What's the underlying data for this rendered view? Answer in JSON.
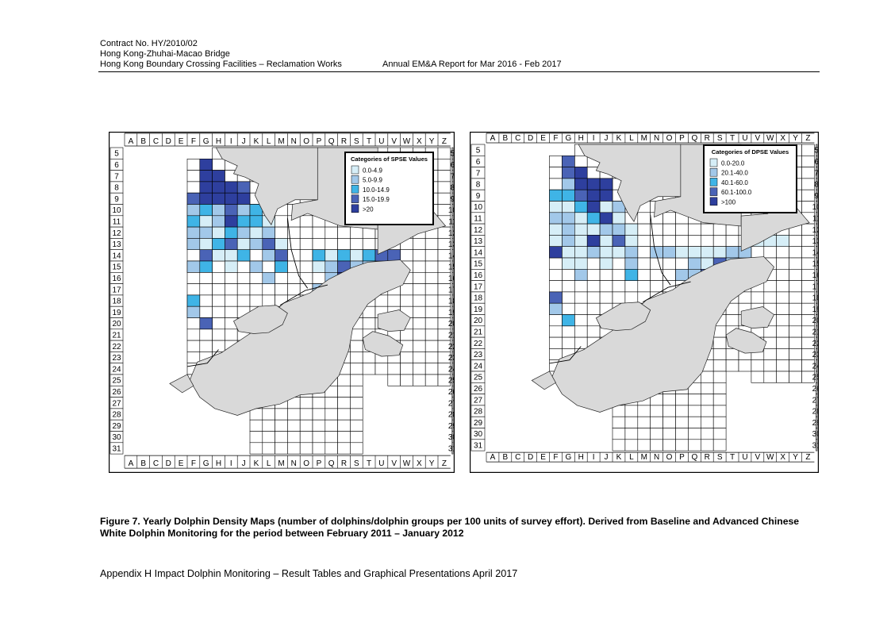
{
  "header": {
    "contract": "Contract No. HY/2010/02",
    "project": "Hong Kong-Zhuhai-Macao Bridge",
    "works": "Hong Kong Boundary Crossing Facilities – Reclamation Works",
    "report": "Annual EM&A Report for Mar 2016 - Feb 2017"
  },
  "grid": {
    "columns": [
      "A",
      "B",
      "C",
      "D",
      "E",
      "F",
      "G",
      "H",
      "I",
      "J",
      "K",
      "L",
      "M",
      "N",
      "O",
      "P",
      "Q",
      "R",
      "S",
      "T",
      "U",
      "V",
      "W",
      "X",
      "Y",
      "Z"
    ],
    "rows": [
      "5",
      "6",
      "7",
      "8",
      "9",
      "10",
      "11",
      "12",
      "13",
      "14",
      "15",
      "16",
      "17",
      "18",
      "19",
      "20",
      "21",
      "22",
      "23",
      "24",
      "25",
      "26",
      "27",
      "28",
      "29",
      "30",
      "31"
    ]
  },
  "maps": [
    {
      "legend_title": "Categories of SPSE Values",
      "categories": [
        {
          "label": "0.0-4.9",
          "color": "#d6eef7"
        },
        {
          "label": "5.0-9.9",
          "color": "#a2c8e9"
        },
        {
          "label": "10.0-14.9",
          "color": "#3fb4e6"
        },
        {
          "label": "15.0-19.9",
          "color": "#4a63b6"
        },
        {
          "label": ">20",
          "color": "#2e3f9e"
        }
      ],
      "cells": [
        [
          "G",
          6,
          4
        ],
        [
          "G",
          7,
          4
        ],
        [
          "H",
          7,
          4
        ],
        [
          "G",
          8,
          4
        ],
        [
          "H",
          8,
          4
        ],
        [
          "I",
          8,
          4
        ],
        [
          "J",
          8,
          3
        ],
        [
          "F",
          9,
          3
        ],
        [
          "G",
          9,
          4
        ],
        [
          "H",
          9,
          4
        ],
        [
          "I",
          9,
          4
        ],
        [
          "J",
          9,
          4
        ],
        [
          "F",
          10,
          1
        ],
        [
          "G",
          10,
          2
        ],
        [
          "H",
          10,
          1
        ],
        [
          "I",
          10,
          3
        ],
        [
          "J",
          10,
          1
        ],
        [
          "K",
          10,
          2
        ],
        [
          "F",
          11,
          2
        ],
        [
          "G",
          11,
          0
        ],
        [
          "H",
          11,
          1
        ],
        [
          "I",
          11,
          4
        ],
        [
          "J",
          11,
          2
        ],
        [
          "K",
          11,
          2
        ],
        [
          "L",
          11,
          0
        ],
        [
          "F",
          12,
          1
        ],
        [
          "G",
          12,
          1
        ],
        [
          "H",
          12,
          0
        ],
        [
          "I",
          12,
          2
        ],
        [
          "J",
          12,
          1
        ],
        [
          "K",
          12,
          0
        ],
        [
          "L",
          12,
          1
        ],
        [
          "F",
          13,
          1
        ],
        [
          "G",
          13,
          0
        ],
        [
          "H",
          13,
          2
        ],
        [
          "I",
          13,
          3
        ],
        [
          "J",
          13,
          0
        ],
        [
          "K",
          13,
          1
        ],
        [
          "L",
          13,
          3
        ],
        [
          "M",
          13,
          0
        ],
        [
          "G",
          14,
          3
        ],
        [
          "H",
          14,
          0
        ],
        [
          "I",
          14,
          0
        ],
        [
          "J",
          14,
          2
        ],
        [
          "L",
          14,
          1
        ],
        [
          "M",
          14,
          3
        ],
        [
          "P",
          14,
          2
        ],
        [
          "Q",
          14,
          0
        ],
        [
          "R",
          14,
          2
        ],
        [
          "S",
          14,
          0
        ],
        [
          "T",
          14,
          2
        ],
        [
          "U",
          14,
          3
        ],
        [
          "V",
          14,
          3
        ],
        [
          "F",
          15,
          1
        ],
        [
          "G",
          15,
          2
        ],
        [
          "I",
          15,
          0
        ],
        [
          "K",
          15,
          1
        ],
        [
          "M",
          15,
          2
        ],
        [
          "P",
          15,
          0
        ],
        [
          "Q",
          15,
          1
        ],
        [
          "R",
          15,
          3
        ],
        [
          "S",
          15,
          1
        ],
        [
          "T",
          15,
          1
        ],
        [
          "L",
          16,
          1
        ],
        [
          "Q",
          16,
          1
        ],
        [
          "R",
          16,
          4
        ],
        [
          "S",
          16,
          3
        ],
        [
          "P",
          17,
          1
        ],
        [
          "Q",
          17,
          1
        ],
        [
          "R",
          17,
          1
        ],
        [
          "F",
          18,
          2
        ],
        [
          "F",
          19,
          1
        ],
        [
          "G",
          20,
          3
        ]
      ]
    },
    {
      "legend_title": "Categories of DPSE Values",
      "categories": [
        {
          "label": "0.0-20.0",
          "color": "#d6eef7"
        },
        {
          "label": "20.1-40.0",
          "color": "#a2c8e9"
        },
        {
          "label": "40.1-60.0",
          "color": "#3fb4e6"
        },
        {
          "label": "60.1-100.0",
          "color": "#4a63b6"
        },
        {
          "label": ">100",
          "color": "#2e3f9e"
        }
      ],
      "cells": [
        [
          "G",
          6,
          3
        ],
        [
          "G",
          7,
          3
        ],
        [
          "H",
          7,
          4
        ],
        [
          "H",
          8,
          4
        ],
        [
          "I",
          8,
          4
        ],
        [
          "J",
          8,
          4
        ],
        [
          "G",
          8,
          1
        ],
        [
          "F",
          9,
          2
        ],
        [
          "G",
          9,
          2
        ],
        [
          "H",
          9,
          3
        ],
        [
          "I",
          9,
          4
        ],
        [
          "J",
          9,
          4
        ],
        [
          "F",
          10,
          0
        ],
        [
          "G",
          10,
          0
        ],
        [
          "H",
          10,
          2
        ],
        [
          "I",
          10,
          4
        ],
        [
          "J",
          10,
          0
        ],
        [
          "K",
          10,
          1
        ],
        [
          "F",
          11,
          1
        ],
        [
          "G",
          11,
          1
        ],
        [
          "H",
          11,
          0
        ],
        [
          "I",
          11,
          2
        ],
        [
          "J",
          11,
          4
        ],
        [
          "K",
          11,
          0
        ],
        [
          "F",
          12,
          0
        ],
        [
          "G",
          12,
          1
        ],
        [
          "H",
          12,
          0
        ],
        [
          "I",
          12,
          0
        ],
        [
          "J",
          12,
          1
        ],
        [
          "K",
          12,
          1
        ],
        [
          "L",
          12,
          0
        ],
        [
          "F",
          13,
          0
        ],
        [
          "G",
          13,
          1
        ],
        [
          "H",
          13,
          0
        ],
        [
          "I",
          13,
          4
        ],
        [
          "J",
          13,
          0
        ],
        [
          "K",
          13,
          3
        ],
        [
          "L",
          13,
          0
        ],
        [
          "V",
          13,
          0
        ],
        [
          "W",
          13,
          0
        ],
        [
          "X",
          13,
          0
        ],
        [
          "F",
          14,
          4
        ],
        [
          "G",
          14,
          0
        ],
        [
          "H",
          14,
          0
        ],
        [
          "I",
          14,
          1
        ],
        [
          "J",
          14,
          0
        ],
        [
          "K",
          14,
          0
        ],
        [
          "L",
          14,
          1
        ],
        [
          "N",
          14,
          1
        ],
        [
          "O",
          14,
          1
        ],
        [
          "P",
          14,
          0
        ],
        [
          "Q",
          14,
          0
        ],
        [
          "R",
          14,
          0
        ],
        [
          "S",
          14,
          0
        ],
        [
          "T",
          14,
          1
        ],
        [
          "U",
          14,
          1
        ],
        [
          "G",
          15,
          0
        ],
        [
          "H",
          15,
          0
        ],
        [
          "J",
          15,
          0
        ],
        [
          "L",
          15,
          1
        ],
        [
          "Q",
          15,
          1
        ],
        [
          "R",
          15,
          0
        ],
        [
          "S",
          15,
          3
        ],
        [
          "T",
          15,
          1
        ],
        [
          "H",
          16,
          1
        ],
        [
          "L",
          16,
          2
        ],
        [
          "P",
          16,
          1
        ],
        [
          "R",
          16,
          3
        ],
        [
          "Q",
          16,
          1
        ],
        [
          "S",
          16,
          1
        ],
        [
          "R",
          17,
          3
        ],
        [
          "F",
          18,
          3
        ],
        [
          "F",
          19,
          1
        ],
        [
          "G",
          20,
          2
        ]
      ]
    }
  ],
  "caption": "Figure 7.  Yearly Dolphin Density Maps (number of dolphins/dolphin groups per 100 units of survey effort).  Derived from Baseline and Advanced Chinese White Dolphin Monitoring for the period between February 2011 – January 2012",
  "footer": "Appendix H Impact Dolphin Monitoring – Result Tables and Graphical Presentations   April 2017"
}
